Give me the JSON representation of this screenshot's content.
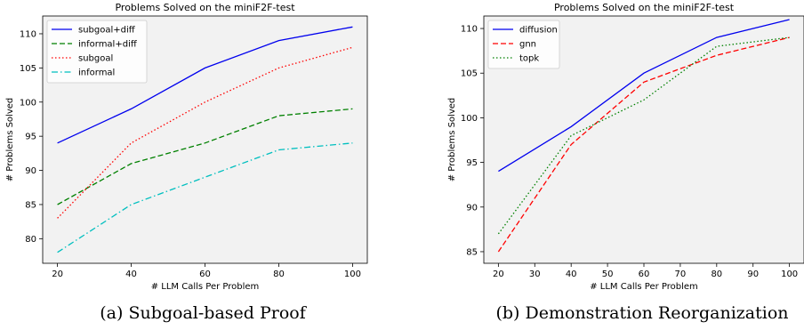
{
  "chart_data": [
    {
      "type": "line",
      "title": "Problems Solved on the miniF2F-test",
      "xlabel": "# LLM Calls Per Problem",
      "ylabel": "# Problems Solved",
      "caption": "(a)  Subgoal-based Proof",
      "x": [
        20,
        40,
        60,
        80,
        100
      ],
      "xticks": [
        20,
        40,
        60,
        80,
        100
      ],
      "yticks": [
        80,
        85,
        90,
        95,
        100,
        105,
        110
      ],
      "xlim": [
        16,
        104
      ],
      "ylim": [
        76.4,
        112.6
      ],
      "grid": false,
      "legend_position": "top-left",
      "background": "#f2f2f2",
      "series": [
        {
          "name": "subgoal+diff",
          "values": [
            94,
            99,
            105,
            109,
            111
          ],
          "color": "#0000ee",
          "dash": ""
        },
        {
          "name": "informal+diff",
          "values": [
            85,
            91,
            94,
            98,
            99
          ],
          "color": "#008000",
          "dash": "6,3"
        },
        {
          "name": "subgoal",
          "values": [
            83,
            94,
            100,
            105,
            108
          ],
          "color": "#ff0000",
          "dash": "1.5,2.5"
        },
        {
          "name": "informal",
          "values": [
            78,
            85,
            89,
            93,
            94
          ],
          "color": "#00bfbf",
          "dash": "7,3,1.5,3"
        }
      ]
    },
    {
      "type": "line",
      "title": "Problems Solved on the miniF2F-test",
      "xlabel": "# LLM Calls Per Problem",
      "ylabel": "# Problems Solved",
      "caption": "(b)  Demonstration Reorganization",
      "x": [
        20,
        40,
        60,
        80,
        100
      ],
      "xticks": [
        20,
        30,
        40,
        50,
        60,
        70,
        80,
        90,
        100
      ],
      "yticks": [
        85,
        90,
        95,
        100,
        105,
        110
      ],
      "xlim": [
        16,
        104
      ],
      "ylim": [
        83.7,
        111.4
      ],
      "grid": false,
      "legend_position": "top-left",
      "background": "#f2f2f2",
      "series": [
        {
          "name": "diffusion",
          "values": [
            94,
            99,
            105,
            109,
            111
          ],
          "color": "#0000ee",
          "dash": ""
        },
        {
          "name": "gnn",
          "values": [
            85,
            97,
            104,
            107,
            109
          ],
          "color": "#ff0000",
          "dash": "6,3"
        },
        {
          "name": "topk",
          "values": [
            87,
            98,
            102,
            108,
            109
          ],
          "color": "#008000",
          "dash": "1.5,2.5"
        }
      ]
    }
  ]
}
